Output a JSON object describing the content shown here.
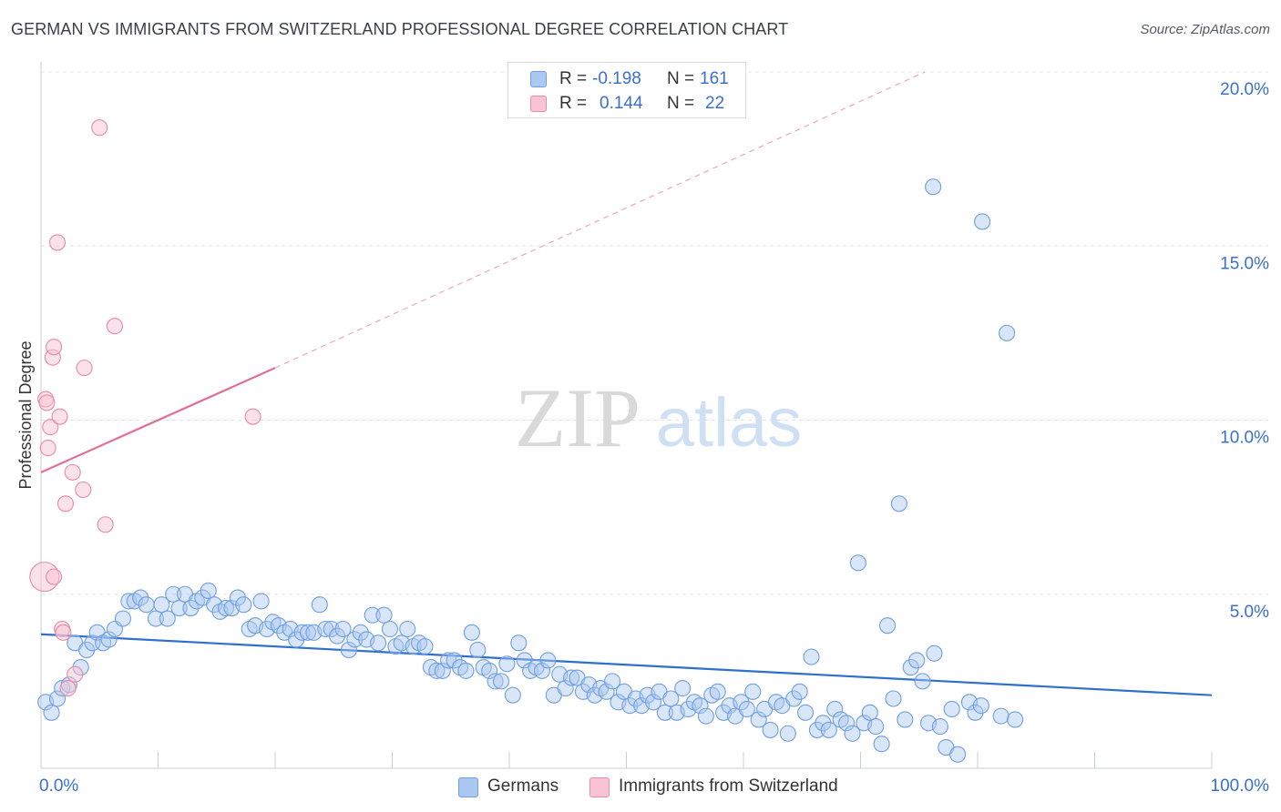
{
  "title": "GERMAN VS IMMIGRANTS FROM SWITZERLAND PROFESSIONAL DEGREE CORRELATION CHART",
  "source": "Source: ZipAtlas.com",
  "watermark": {
    "zip": "ZIP",
    "atlas": "atlas"
  },
  "legend_top": {
    "rows": [
      {
        "r_label": "R =",
        "r_value": "-0.198",
        "n_label": "N =",
        "n_value": "161",
        "color": "#aac8f0",
        "border": "#6f9fe0"
      },
      {
        "r_label": "R =",
        "r_value": "0.144",
        "n_label": "N =",
        "n_value": "22",
        "color": "#f8c4d4",
        "border": "#e88aa8"
      }
    ]
  },
  "legend_bottom": [
    {
      "label": "Germans",
      "color": "#aac8f0",
      "border": "#6f9fe0"
    },
    {
      "label": "Immigrants from Switzerland",
      "color": "#f8c4d4",
      "border": "#e88aa8"
    }
  ],
  "chart_data": {
    "type": "scatter",
    "ylabel": "Professional Degree",
    "xlabel": "",
    "xlim": [
      0,
      100
    ],
    "ylim": [
      0,
      20
    ],
    "x_tick_labels": [
      "0.0%",
      "100.0%"
    ],
    "y_ticks": [
      5,
      10,
      15,
      20
    ],
    "y_tick_labels": [
      "5.0%",
      "10.0%",
      "15.0%",
      "20.0%"
    ],
    "grid": "horizontal dashed",
    "colors": {
      "germans": "#6f9fe0",
      "germans_line": "#2f6fce",
      "swiss": "#e88aa8",
      "swiss_line": "#e0709a",
      "axis_text": "#3a6fd1"
    },
    "series": [
      {
        "name": "Germans",
        "trend": {
          "x": [
            0,
            100
          ],
          "y": [
            3.85,
            2.1
          ]
        },
        "points": [
          [
            0.4,
            1.9
          ],
          [
            0.9,
            1.6
          ],
          [
            1.4,
            2.0
          ],
          [
            1.8,
            2.3
          ],
          [
            2.4,
            2.4
          ],
          [
            2.9,
            3.6
          ],
          [
            3.4,
            2.9
          ],
          [
            3.9,
            3.4
          ],
          [
            4.4,
            3.6
          ],
          [
            4.8,
            3.9
          ],
          [
            5.3,
            3.6
          ],
          [
            5.8,
            3.7
          ],
          [
            6.3,
            4.0
          ],
          [
            7.0,
            4.3
          ],
          [
            7.5,
            4.8
          ],
          [
            8.0,
            4.8
          ],
          [
            8.5,
            4.9
          ],
          [
            9.0,
            4.7
          ],
          [
            9.8,
            4.3
          ],
          [
            10.3,
            4.7
          ],
          [
            10.8,
            4.3
          ],
          [
            11.3,
            5.0
          ],
          [
            11.8,
            4.6
          ],
          [
            12.3,
            5.0
          ],
          [
            12.8,
            4.6
          ],
          [
            13.3,
            4.8
          ],
          [
            13.8,
            4.9
          ],
          [
            14.3,
            5.1
          ],
          [
            14.8,
            4.7
          ],
          [
            15.3,
            4.5
          ],
          [
            15.8,
            4.6
          ],
          [
            16.3,
            4.6
          ],
          [
            16.8,
            4.9
          ],
          [
            17.3,
            4.7
          ],
          [
            17.8,
            4.0
          ],
          [
            18.3,
            4.1
          ],
          [
            18.8,
            4.8
          ],
          [
            19.3,
            4.0
          ],
          [
            19.8,
            4.2
          ],
          [
            20.3,
            4.1
          ],
          [
            20.8,
            3.9
          ],
          [
            21.3,
            4.0
          ],
          [
            21.8,
            3.7
          ],
          [
            22.3,
            3.9
          ],
          [
            22.8,
            3.9
          ],
          [
            23.3,
            3.9
          ],
          [
            23.8,
            4.7
          ],
          [
            24.3,
            4.0
          ],
          [
            24.8,
            4.0
          ],
          [
            25.3,
            3.8
          ],
          [
            25.8,
            4.0
          ],
          [
            26.3,
            3.4
          ],
          [
            26.8,
            3.7
          ],
          [
            27.3,
            3.9
          ],
          [
            27.8,
            3.7
          ],
          [
            28.3,
            4.4
          ],
          [
            28.8,
            3.6
          ],
          [
            29.3,
            4.4
          ],
          [
            29.8,
            4.0
          ],
          [
            30.3,
            3.5
          ],
          [
            30.8,
            3.6
          ],
          [
            31.3,
            4.0
          ],
          [
            31.8,
            3.5
          ],
          [
            32.3,
            3.6
          ],
          [
            32.8,
            3.5
          ],
          [
            33.3,
            2.9
          ],
          [
            33.8,
            2.8
          ],
          [
            34.3,
            2.8
          ],
          [
            34.8,
            3.1
          ],
          [
            35.3,
            3.1
          ],
          [
            35.8,
            2.9
          ],
          [
            36.3,
            2.8
          ],
          [
            36.8,
            3.9
          ],
          [
            37.3,
            3.4
          ],
          [
            37.8,
            2.9
          ],
          [
            38.3,
            2.8
          ],
          [
            38.8,
            2.5
          ],
          [
            39.3,
            2.5
          ],
          [
            39.8,
            3.0
          ],
          [
            40.3,
            2.1
          ],
          [
            40.8,
            3.6
          ],
          [
            41.3,
            3.1
          ],
          [
            41.8,
            2.8
          ],
          [
            42.3,
            2.9
          ],
          [
            42.8,
            2.8
          ],
          [
            43.3,
            3.1
          ],
          [
            43.8,
            2.1
          ],
          [
            44.3,
            2.7
          ],
          [
            44.8,
            2.3
          ],
          [
            45.3,
            2.6
          ],
          [
            45.8,
            2.6
          ],
          [
            46.3,
            2.2
          ],
          [
            46.8,
            2.4
          ],
          [
            47.3,
            2.1
          ],
          [
            47.8,
            2.3
          ],
          [
            48.3,
            2.2
          ],
          [
            48.8,
            2.5
          ],
          [
            49.3,
            1.9
          ],
          [
            49.8,
            2.2
          ],
          [
            50.3,
            1.8
          ],
          [
            50.8,
            2.0
          ],
          [
            51.3,
            1.8
          ],
          [
            51.8,
            2.1
          ],
          [
            52.3,
            1.9
          ],
          [
            52.8,
            2.2
          ],
          [
            53.3,
            1.6
          ],
          [
            53.8,
            2.0
          ],
          [
            54.3,
            1.6
          ],
          [
            54.8,
            2.3
          ],
          [
            55.3,
            1.7
          ],
          [
            55.8,
            1.9
          ],
          [
            56.3,
            1.8
          ],
          [
            56.8,
            1.5
          ],
          [
            57.3,
            2.1
          ],
          [
            57.8,
            2.2
          ],
          [
            58.3,
            1.6
          ],
          [
            58.8,
            1.8
          ],
          [
            59.3,
            1.5
          ],
          [
            59.8,
            1.9
          ],
          [
            60.3,
            1.7
          ],
          [
            60.8,
            2.2
          ],
          [
            61.3,
            1.4
          ],
          [
            61.8,
            1.7
          ],
          [
            62.3,
            1.1
          ],
          [
            62.8,
            1.9
          ],
          [
            63.3,
            1.8
          ],
          [
            63.8,
            1.0
          ],
          [
            64.3,
            2.0
          ],
          [
            64.8,
            2.2
          ],
          [
            65.3,
            1.6
          ],
          [
            65.8,
            3.2
          ],
          [
            66.3,
            1.1
          ],
          [
            66.8,
            1.3
          ],
          [
            67.3,
            1.1
          ],
          [
            67.8,
            1.7
          ],
          [
            68.3,
            1.4
          ],
          [
            68.8,
            1.3
          ],
          [
            69.3,
            1.0
          ],
          [
            69.8,
            5.9
          ],
          [
            70.3,
            1.3
          ],
          [
            70.8,
            1.6
          ],
          [
            71.3,
            1.2
          ],
          [
            71.8,
            0.7
          ],
          [
            72.3,
            4.1
          ],
          [
            72.8,
            2.0
          ],
          [
            73.3,
            7.6
          ],
          [
            73.8,
            1.4
          ],
          [
            74.3,
            2.9
          ],
          [
            74.8,
            3.1
          ],
          [
            75.3,
            2.5
          ],
          [
            75.8,
            1.3
          ],
          [
            76.3,
            3.3
          ],
          [
            76.8,
            1.2
          ],
          [
            77.3,
            0.6
          ],
          [
            77.8,
            1.7
          ],
          [
            78.3,
            0.4
          ],
          [
            79.3,
            1.9
          ],
          [
            79.8,
            1.6
          ],
          [
            80.3,
            1.8
          ],
          [
            82.0,
            1.5
          ],
          [
            83.2,
            1.4
          ],
          [
            76.2,
            16.7
          ],
          [
            80.4,
            15.7
          ],
          [
            82.5,
            12.5
          ]
        ]
      },
      {
        "name": "Immigrants from Switzerland",
        "trend": {
          "x": [
            0,
            20
          ],
          "y": [
            8.5,
            11.5
          ]
        },
        "trend_extension": {
          "x": [
            20,
            75.5
          ],
          "y": [
            11.5,
            20.0
          ]
        },
        "points": [
          [
            0.3,
            5.5
          ],
          [
            0.4,
            10.6
          ],
          [
            0.5,
            10.5
          ],
          [
            0.6,
            9.2
          ],
          [
            0.8,
            9.8
          ],
          [
            1.0,
            11.8
          ],
          [
            1.1,
            12.1
          ],
          [
            1.4,
            15.1
          ],
          [
            1.6,
            10.1
          ],
          [
            1.8,
            4.0
          ],
          [
            1.9,
            3.9
          ],
          [
            2.1,
            7.6
          ],
          [
            2.3,
            2.3
          ],
          [
            2.7,
            8.5
          ],
          [
            2.9,
            2.7
          ],
          [
            3.6,
            8.0
          ],
          [
            5.0,
            18.4
          ],
          [
            5.5,
            7.0
          ],
          [
            6.3,
            12.7
          ],
          [
            18.1,
            10.1
          ],
          [
            1.1,
            5.5
          ],
          [
            3.7,
            11.5
          ]
        ]
      }
    ]
  }
}
